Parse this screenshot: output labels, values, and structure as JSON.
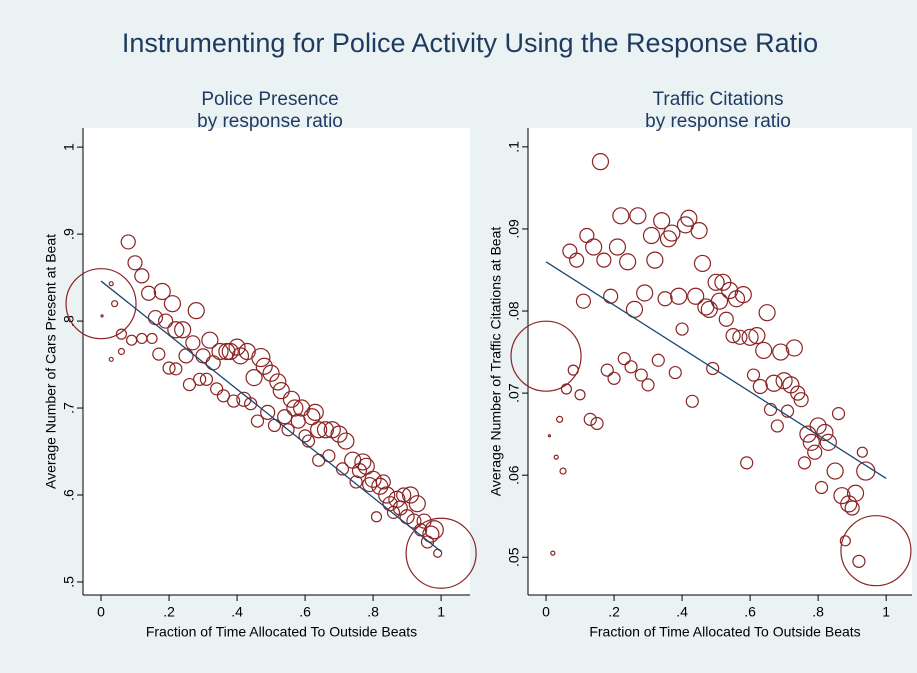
{
  "title": "Instrumenting for Police Activity Using the Response Ratio",
  "chart_data": [
    {
      "type": "scatter",
      "title": "Police Presence",
      "subtitle": "by response ratio",
      "xlabel": "Fraction of Time Allocated To Outside Beats",
      "ylabel": "Average Number of Cars Present at Beat",
      "color": "#8b2323",
      "xlim": [
        -0.053,
        1.085
      ],
      "ylim": [
        0.485,
        1.022
      ],
      "xticks": [
        0,
        {
          "value": 0.2,
          "label": ".2"
        },
        {
          "value": 0.4,
          "label": ".4"
        },
        {
          "value": 0.6,
          "label": ".6"
        },
        {
          "value": 0.8,
          "label": ".8"
        },
        1
      ],
      "yticks": [
        {
          "value": 0.5,
          "label": ".5"
        },
        {
          "value": 0.6,
          "label": ".6"
        },
        {
          "value": 0.7,
          "label": ".7"
        },
        {
          "value": 0.8,
          "label": ".8"
        },
        {
          "value": 0.9,
          "label": ".9"
        },
        1
      ],
      "x": [
        0,
        0.003,
        0.03,
        0.04,
        0.03,
        0.06,
        0.06,
        0.08,
        0.1,
        0.09,
        0.12,
        0.12,
        0.14,
        0.15,
        0.16,
        0.17,
        0.18,
        0.19,
        0.2,
        0.21,
        0.22,
        0.22,
        0.24,
        0.25,
        0.26,
        0.27,
        0.28,
        0.29,
        0.3,
        0.31,
        0.32,
        0.33,
        0.34,
        0.35,
        0.36,
        0.37,
        0.38,
        0.39,
        0.4,
        0.41,
        0.42,
        0.43,
        0.44,
        0.45,
        0.46,
        0.47,
        0.48,
        0.49,
        0.5,
        0.51,
        0.52,
        0.53,
        0.54,
        0.55,
        0.56,
        0.57,
        0.58,
        0.59,
        0.6,
        0.61,
        0.62,
        0.63,
        0.64,
        0.64,
        0.66,
        0.67,
        0.68,
        0.7,
        0.71,
        0.72,
        0.74,
        0.75,
        0.76,
        0.77,
        0.78,
        0.79,
        0.8,
        0.81,
        0.82,
        0.83,
        0.84,
        0.85,
        0.86,
        0.87,
        0.88,
        0.89,
        0.9,
        0.91,
        0.92,
        0.93,
        0.94,
        0.95,
        0.96,
        0.97,
        0.98,
        0.99,
        1
      ],
      "values": [
        0.82,
        0.806,
        0.843,
        0.82,
        0.756,
        0.765,
        0.785,
        0.891,
        0.867,
        0.778,
        0.852,
        0.78,
        0.832,
        0.78,
        0.804,
        0.762,
        0.834,
        0.8,
        0.746,
        0.82,
        0.745,
        0.79,
        0.79,
        0.76,
        0.727,
        0.775,
        0.812,
        0.733,
        0.76,
        0.733,
        0.778,
        0.752,
        0.722,
        0.765,
        0.714,
        0.765,
        0.765,
        0.708,
        0.77,
        0.76,
        0.71,
        0.765,
        0.705,
        0.735,
        0.685,
        0.758,
        0.748,
        0.695,
        0.74,
        0.68,
        0.73,
        0.72,
        0.69,
        0.675,
        0.71,
        0.7,
        0.685,
        0.7,
        0.668,
        0.662,
        0.69,
        0.695,
        0.675,
        0.64,
        0.675,
        0.645,
        0.675,
        0.67,
        0.63,
        0.662,
        0.64,
        0.615,
        0.628,
        0.638,
        0.633,
        0.612,
        0.618,
        0.575,
        0.61,
        0.615,
        0.6,
        0.59,
        0.58,
        0.595,
        0.585,
        0.6,
        0.575,
        0.6,
        0.57,
        0.59,
        0.56,
        0.57,
        0.546,
        0.555,
        0.56,
        0.533,
        0.533
      ],
      "sizes": [
        1225,
        1,
        4,
        9,
        4,
        9,
        25,
        49,
        49,
        25,
        49,
        25,
        49,
        25,
        49,
        36,
        64,
        49,
        36,
        64,
        36,
        64,
        64,
        49,
        36,
        49,
        64,
        36,
        49,
        36,
        64,
        49,
        36,
        64,
        36,
        64,
        64,
        36,
        64,
        64,
        49,
        64,
        36,
        64,
        36,
        81,
        64,
        49,
        64,
        36,
        64,
        64,
        49,
        36,
        64,
        64,
        49,
        64,
        36,
        36,
        64,
        64,
        64,
        36,
        64,
        36,
        64,
        64,
        36,
        64,
        64,
        36,
        49,
        64,
        64,
        49,
        64,
        25,
        64,
        49,
        64,
        49,
        36,
        64,
        49,
        49,
        49,
        64,
        49,
        64,
        36,
        49,
        36,
        64,
        81,
        16,
        1225
      ],
      "fit": {
        "x": [
          0,
          1
        ],
        "values": [
          0.846,
          0.535
        ],
        "color": "#1a476f"
      }
    },
    {
      "type": "scatter",
      "title": "Traffic Citations",
      "subtitle": "by response ratio",
      "xlabel": "Fraction of Time Allocated To Outside Beats",
      "ylabel": "Average Number of Traffic Citations at Beat",
      "color": "#8b2323",
      "xlim": [
        -0.053,
        1.076
      ],
      "ylim": [
        0.0454,
        0.1023
      ],
      "xticks": [
        0,
        {
          "value": 0.2,
          "label": ".2"
        },
        {
          "value": 0.4,
          "label": ".4"
        },
        {
          "value": 0.6,
          "label": ".6"
        },
        {
          "value": 0.8,
          "label": ".8"
        },
        1
      ],
      "yticks": [
        {
          "value": 0.05,
          "label": ".05"
        },
        {
          "value": 0.06,
          "label": ".06"
        },
        {
          "value": 0.07,
          "label": ".07"
        },
        {
          "value": 0.08,
          "label": ".08"
        },
        {
          "value": 0.09,
          "label": ".09"
        },
        {
          "value": 0.1,
          "label": ".1"
        }
      ],
      "x": [
        0,
        0.01,
        0.02,
        0.03,
        0.04,
        0.05,
        0.06,
        0.07,
        0.08,
        0.09,
        0.1,
        0.11,
        0.12,
        0.13,
        0.14,
        0.15,
        0.16,
        0.17,
        0.18,
        0.19,
        0.2,
        0.21,
        0.22,
        0.23,
        0.24,
        0.25,
        0.26,
        0.27,
        0.28,
        0.29,
        0.3,
        0.31,
        0.32,
        0.33,
        0.34,
        0.35,
        0.36,
        0.37,
        0.38,
        0.39,
        0.4,
        0.41,
        0.42,
        0.43,
        0.44,
        0.45,
        0.46,
        0.47,
        0.48,
        0.49,
        0.5,
        0.51,
        0.52,
        0.53,
        0.54,
        0.55,
        0.56,
        0.57,
        0.58,
        0.59,
        0.6,
        0.61,
        0.62,
        0.63,
        0.64,
        0.65,
        0.66,
        0.67,
        0.68,
        0.69,
        0.7,
        0.71,
        0.72,
        0.73,
        0.74,
        0.75,
        0.76,
        0.77,
        0.78,
        0.79,
        0.8,
        0.81,
        0.82,
        0.83,
        0.85,
        0.86,
        0.87,
        0.88,
        0.89,
        0.9,
        0.91,
        0.92,
        0.93,
        0.94,
        0.97
      ],
      "values": [
        0.0745,
        0.0648,
        0.0505,
        0.0622,
        0.0668,
        0.0605,
        0.0705,
        0.0873,
        0.0728,
        0.0862,
        0.0698,
        0.0812,
        0.0892,
        0.0668,
        0.0878,
        0.0663,
        0.0982,
        0.0862,
        0.0728,
        0.0818,
        0.0718,
        0.0878,
        0.0916,
        0.0742,
        0.086,
        0.0732,
        0.0802,
        0.0916,
        0.0722,
        0.0822,
        0.071,
        0.0892,
        0.0862,
        0.074,
        0.091,
        0.0815,
        0.0888,
        0.0895,
        0.0725,
        0.0818,
        0.0778,
        0.0905,
        0.0913,
        0.069,
        0.0818,
        0.0898,
        0.0858,
        0.0805,
        0.0802,
        0.073,
        0.0835,
        0.0812,
        0.0835,
        0.079,
        0.0825,
        0.077,
        0.0815,
        0.0768,
        0.082,
        0.0615,
        0.0768,
        0.0722,
        0.077,
        0.0708,
        0.0752,
        0.0798,
        0.068,
        0.0712,
        0.066,
        0.075,
        0.0715,
        0.0678,
        0.071,
        0.0755,
        0.07,
        0.0692,
        0.0615,
        0.065,
        0.064,
        0.0628,
        0.066,
        0.0585,
        0.0652,
        0.064,
        0.0605,
        0.0675,
        0.0575,
        0.052,
        0.0565,
        0.056,
        0.0578,
        0.0495,
        0.0628,
        0.0605,
        0.0508
      ],
      "sizes": [
        1225,
        1,
        4,
        4,
        9,
        9,
        25,
        49,
        25,
        49,
        25,
        49,
        49,
        36,
        64,
        36,
        64,
        49,
        36,
        49,
        36,
        64,
        64,
        36,
        64,
        36,
        64,
        64,
        36,
        64,
        36,
        64,
        64,
        36,
        64,
        49,
        64,
        64,
        36,
        64,
        36,
        64,
        64,
        36,
        64,
        64,
        64,
        64,
        64,
        36,
        64,
        64,
        64,
        49,
        64,
        49,
        64,
        49,
        64,
        36,
        64,
        36,
        64,
        49,
        64,
        64,
        36,
        64,
        36,
        64,
        64,
        36,
        64,
        64,
        49,
        49,
        36,
        64,
        64,
        49,
        64,
        36,
        64,
        64,
        64,
        36,
        64,
        25,
        64,
        49,
        64,
        36,
        25,
        81,
        1225
      ],
      "fit": {
        "x": [
          0,
          1
        ],
        "values": [
          0.086,
          0.0596
        ],
        "color": "#1a476f"
      }
    }
  ]
}
